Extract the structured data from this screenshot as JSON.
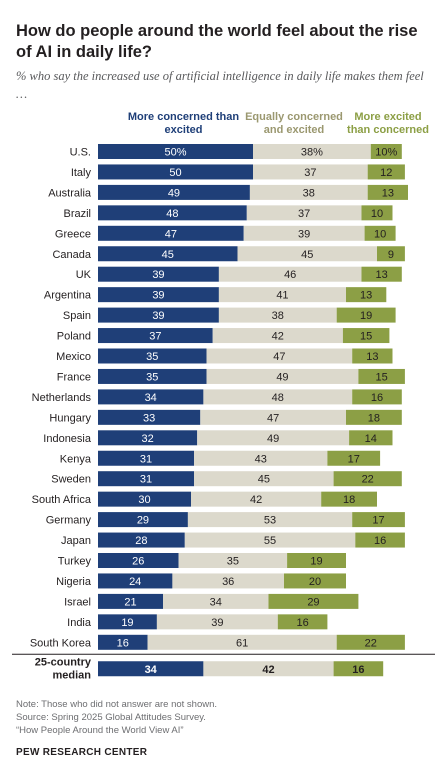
{
  "title": "How do people around the world feel about the rise of AI in daily life?",
  "subtitle": "% who say the increased use of artificial intelligence in daily life makes them feel …",
  "legend": {
    "concerned": "More concerned than excited",
    "equally": "Equally concerned and excited",
    "excited": "More excited than concerned"
  },
  "colors": {
    "concerned": "#1f3f78",
    "equally": "#dcd9cc",
    "excited": "#8c9f45",
    "concerned_text": "#1f3f78",
    "equally_text": "#9b9870",
    "excited_text": "#8c9f45"
  },
  "chart_data": {
    "type": "bar",
    "orientation": "horizontal",
    "stacked": true,
    "categories": [
      "U.S.",
      "Italy",
      "Australia",
      "Brazil",
      "Greece",
      "Canada",
      "UK",
      "Argentina",
      "Spain",
      "Poland",
      "Mexico",
      "France",
      "Netherlands",
      "Hungary",
      "Indonesia",
      "Kenya",
      "Sweden",
      "South Africa",
      "Germany",
      "Japan",
      "Turkey",
      "Nigeria",
      "Israel",
      "India",
      "South Korea"
    ],
    "series": [
      {
        "name": "More concerned than excited",
        "values": [
          50,
          50,
          49,
          48,
          47,
          45,
          39,
          39,
          39,
          37,
          35,
          35,
          34,
          33,
          32,
          31,
          31,
          30,
          29,
          28,
          26,
          24,
          21,
          19,
          16
        ],
        "first_label": "50%"
      },
      {
        "name": "Equally concerned and excited",
        "values": [
          38,
          37,
          38,
          37,
          39,
          45,
          46,
          41,
          38,
          42,
          47,
          49,
          48,
          47,
          49,
          43,
          45,
          42,
          53,
          55,
          35,
          36,
          34,
          39,
          61
        ],
        "first_label": "38%"
      },
      {
        "name": "More excited than concerned",
        "values": [
          10,
          12,
          13,
          10,
          10,
          9,
          13,
          13,
          19,
          15,
          13,
          15,
          16,
          18,
          14,
          17,
          22,
          18,
          17,
          16,
          19,
          20,
          29,
          16,
          22
        ],
        "first_label": "10%"
      }
    ],
    "median": {
      "label_line1": "25-country",
      "label_line2": "median",
      "values": [
        34,
        42,
        16
      ]
    },
    "xlim": [
      0,
      100
    ]
  },
  "notes": {
    "line1": "Note: Those who did not answer are not shown.",
    "line2": "Source: Spring 2025 Global Attitudes Survey.",
    "line3": "“How People Around the World View AI”"
  },
  "brand": "PEW RESEARCH CENTER"
}
